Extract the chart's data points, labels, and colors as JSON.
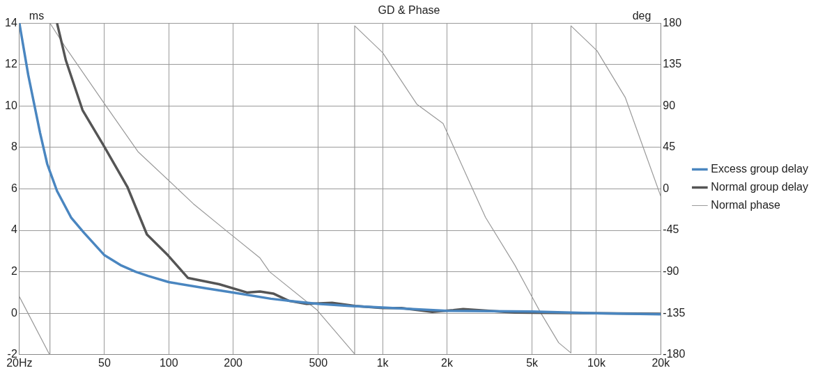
{
  "chart_data": {
    "type": "line",
    "title": "GD & Phase",
    "ylabel": "ms",
    "y2label": "deg",
    "log": "x",
    "grid": true,
    "legend": "right",
    "marker": "none",
    "line_style": "solid",
    "xlim": [
      20,
      20000
    ],
    "xticks": [
      {
        "value": 20,
        "label": "20Hz"
      },
      50,
      100,
      200,
      500,
      {
        "value": 1000,
        "label": "1k"
      },
      {
        "value": 2000,
        "label": "2k"
      },
      {
        "value": 5000,
        "label": "5k"
      },
      {
        "value": 10000,
        "label": "10k"
      },
      {
        "value": 20000,
        "label": "20k"
      }
    ],
    "ylim": [
      -2,
      14
    ],
    "yticks": [
      -2,
      0,
      2,
      4,
      6,
      8,
      10,
      12,
      14
    ],
    "y2lim": [
      -180,
      180
    ],
    "y2ticks": [
      -180,
      -135,
      -90,
      -45,
      0,
      45,
      90,
      135,
      180
    ],
    "series": [
      {
        "name": "Excess group delay",
        "color": "#4a86c0",
        "x": [
          20,
          22,
          25,
          27,
          30,
          35,
          40,
          50,
          60,
          70,
          80,
          100,
          150,
          200,
          300,
          400,
          500,
          700,
          1000,
          2000,
          5000,
          10000,
          20000
        ],
        "values": [
          14,
          11.5,
          8.7,
          7.2,
          5.9,
          4.6,
          3.9,
          2.8,
          2.3,
          2.0,
          1.8,
          1.5,
          1.2,
          1.0,
          0.7,
          0.55,
          0.45,
          0.35,
          0.28,
          0.12,
          0.08,
          0.0,
          -0.05
        ]
      },
      {
        "name": "Normal group delay",
        "color": "#555555",
        "x": [
          30,
          33,
          39.5,
          49.5,
          64,
          79,
          99,
          123,
          172,
          232,
          267,
          308,
          364,
          441,
          580,
          743,
          1000,
          1224,
          1707,
          2140,
          2382,
          4160,
          10000,
          20000
        ],
        "values": [
          14,
          12.2,
          9.8,
          8.1,
          6.1,
          3.8,
          2.8,
          1.7,
          1.4,
          1.0,
          1.05,
          0.95,
          0.6,
          0.45,
          0.5,
          0.35,
          0.25,
          0.25,
          0.07,
          0.15,
          0.2,
          0.03,
          0,
          -0.03
        ]
      },
      {
        "name": "Normal phase",
        "color": "#999999",
        "axis": "y2",
        "x": [
          20,
          27.7,
          27.8,
          32.6,
          49.5,
          72,
          99,
          130,
          187,
          267,
          296,
          491,
          738,
          740,
          1000,
          1445,
          1918,
          2588,
          3030,
          4160,
          5470,
          6660,
          7590,
          7600,
          10060,
          13660,
          20000
        ],
        "values": [
          -117,
          -180,
          180,
          155,
          94,
          40,
          10,
          -16,
          -46,
          -75,
          -90,
          -131,
          -179,
          177,
          148,
          92,
          71,
          4,
          -31,
          -83,
          -134,
          -167,
          -178,
          177,
          150,
          99,
          -8
        ]
      }
    ]
  }
}
